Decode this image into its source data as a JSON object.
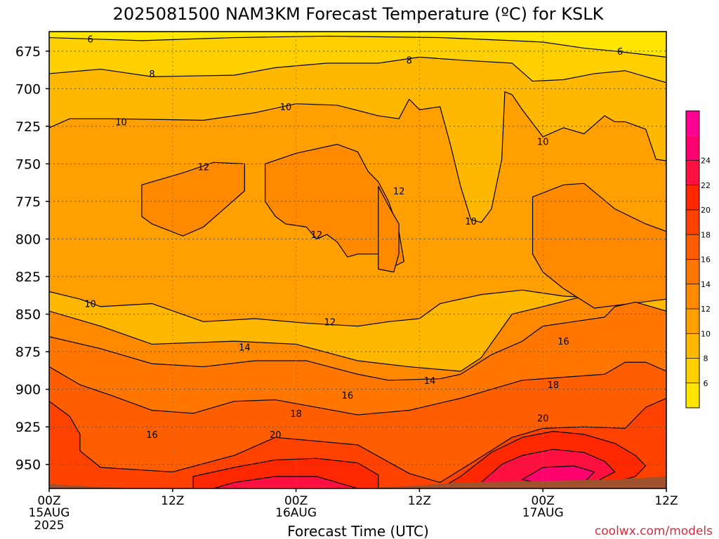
{
  "chart_data": {
    "type": "heatmap",
    "title": "2025081500 NAM3KM Forecast Temperature (ºC) for KSLK",
    "xlabel": "Forecast Time (UTC)",
    "ylabel": "",
    "x_unit": "forecast hour",
    "xlim": [
      0,
      60
    ],
    "ylim": [
      966,
      662
    ],
    "y_ticks": [
      675,
      700,
      725,
      750,
      775,
      800,
      825,
      850,
      875,
      900,
      925,
      950
    ],
    "x_ticks": [
      {
        "hour": 0,
        "label": "00Z",
        "date": "15AUG",
        "year": "2025"
      },
      {
        "hour": 12,
        "label": "12Z",
        "date": "",
        "year": ""
      },
      {
        "hour": 24,
        "label": "00Z",
        "date": "16AUG",
        "year": ""
      },
      {
        "hour": 36,
        "label": "12Z",
        "date": "",
        "year": ""
      },
      {
        "hour": 48,
        "label": "00Z",
        "date": "17AUG",
        "year": ""
      },
      {
        "hour": 60,
        "label": "12Z",
        "date": "",
        "year": ""
      }
    ],
    "grid": true,
    "colorbar": {
      "position": "right",
      "levels": [
        4,
        6,
        8,
        10,
        12,
        14,
        16,
        18,
        20,
        22,
        24,
        26
      ],
      "tick_labels": [
        "6",
        "8",
        "10",
        "12",
        "14",
        "16",
        "18",
        "20",
        "22",
        "24"
      ],
      "colors": [
        "#ffe600",
        "#ffd000",
        "#ffb800",
        "#ff9f00",
        "#ff8a00",
        "#ff7600",
        "#ff5e00",
        "#ff4200",
        "#ff2800",
        "#ff1040",
        "#ff006e",
        "#ff0090"
      ]
    },
    "bands": [
      {
        "level": 6,
        "color": "#ffd000",
        "boundary": [
          [
            0,
            666
          ],
          [
            9,
            668
          ],
          [
            18,
            666
          ],
          [
            27,
            665
          ],
          [
            38,
            666
          ],
          [
            45,
            668
          ],
          [
            48,
            669
          ],
          [
            52,
            673
          ],
          [
            55,
            675
          ],
          [
            60,
            679
          ]
        ]
      },
      {
        "level": 8,
        "color": "#ffb800",
        "boundary": [
          [
            0,
            690
          ],
          [
            5,
            687
          ],
          [
            10,
            692
          ],
          [
            18,
            691
          ],
          [
            22,
            686
          ],
          [
            27,
            683
          ],
          [
            32,
            683
          ],
          [
            36,
            679
          ],
          [
            40,
            681
          ],
          [
            45,
            683
          ],
          [
            47,
            695
          ],
          [
            50,
            694
          ],
          [
            53,
            690
          ],
          [
            56,
            688
          ],
          [
            60,
            696
          ]
        ]
      },
      {
        "level": 10,
        "color": "#ff9f00",
        "boundary": [
          [
            0,
            726
          ],
          [
            2,
            720
          ],
          [
            6,
            720
          ],
          [
            15,
            721
          ],
          [
            20,
            716
          ],
          [
            24,
            710
          ],
          [
            28,
            711
          ],
          [
            32,
            718
          ],
          [
            34,
            720
          ],
          [
            35,
            707
          ],
          [
            36,
            714
          ],
          [
            38,
            712
          ],
          [
            39,
            737
          ],
          [
            40,
            765
          ],
          [
            41,
            787
          ],
          [
            42,
            789
          ],
          [
            43,
            780
          ],
          [
            44,
            747
          ],
          [
            44.3,
            702
          ],
          [
            45,
            704
          ],
          [
            46,
            714
          ],
          [
            48,
            732
          ],
          [
            50,
            726
          ],
          [
            52,
            730
          ],
          [
            54,
            718
          ],
          [
            55,
            722
          ],
          [
            56,
            722
          ],
          [
            58,
            727
          ],
          [
            59,
            747
          ],
          [
            60,
            748
          ],
          [
            60,
            840
          ],
          [
            55,
            840
          ],
          [
            50,
            838
          ],
          [
            46,
            834
          ],
          [
            42,
            837
          ],
          [
            38,
            843
          ],
          [
            36,
            853
          ],
          [
            33,
            855
          ],
          [
            30,
            858
          ],
          [
            25,
            856
          ],
          [
            20,
            853
          ],
          [
            15,
            855
          ],
          [
            10,
            843
          ],
          [
            5,
            845
          ],
          [
            3,
            840
          ],
          [
            0,
            835
          ]
        ]
      },
      {
        "level": 12,
        "color": "#ff8a00",
        "boundary": [
          [
            0,
            848
          ],
          [
            5,
            858
          ],
          [
            10,
            870
          ],
          [
            18,
            868
          ],
          [
            24,
            870
          ],
          [
            30,
            881
          ],
          [
            35,
            885
          ],
          [
            40,
            888
          ],
          [
            42,
            879
          ],
          [
            45,
            850
          ],
          [
            48,
            845
          ],
          [
            52,
            838
          ],
          [
            53,
            846
          ],
          [
            55,
            844
          ],
          [
            57,
            845
          ],
          [
            58,
            847
          ],
          [
            60,
            848
          ],
          [
            60,
            966
          ],
          [
            0,
            966
          ]
        ]
      },
      {
        "level": 12,
        "color": "#ff8a00",
        "boundary": [
          [
            9,
            764
          ],
          [
            13,
            756
          ],
          [
            16,
            749
          ],
          [
            19,
            750
          ],
          [
            19,
            768
          ],
          [
            17,
            780
          ],
          [
            15,
            792
          ],
          [
            13,
            798
          ],
          [
            10,
            790
          ],
          [
            9,
            785
          ]
        ]
      },
      {
        "level": 12,
        "color": "#ff8a00",
        "boundary": [
          [
            21,
            750
          ],
          [
            24,
            743
          ],
          [
            28,
            737
          ],
          [
            30,
            742
          ],
          [
            31,
            755
          ],
          [
            32,
            762
          ],
          [
            33,
            775
          ],
          [
            34,
            795
          ],
          [
            34.5,
            815
          ],
          [
            33,
            820
          ],
          [
            32,
            810
          ],
          [
            30,
            810
          ],
          [
            29,
            812
          ],
          [
            28,
            802
          ],
          [
            27,
            797
          ],
          [
            26,
            800
          ],
          [
            25,
            792
          ],
          [
            23,
            790
          ],
          [
            22,
            785
          ],
          [
            21,
            775
          ]
        ]
      },
      {
        "level": 12,
        "color": "#ff8a00",
        "boundary": [
          [
            32,
            765
          ],
          [
            33,
            778
          ],
          [
            34,
            790
          ],
          [
            34,
            810
          ],
          [
            33.5,
            822
          ],
          [
            32,
            820
          ]
        ]
      },
      {
        "level": 12,
        "color": "#ff8a00",
        "boundary": [
          [
            47,
            772
          ],
          [
            50,
            764
          ],
          [
            52,
            763
          ],
          [
            55,
            780
          ],
          [
            58,
            790
          ],
          [
            60,
            795
          ],
          [
            60,
            840
          ],
          [
            53,
            846
          ],
          [
            50,
            833
          ],
          [
            48,
            822
          ],
          [
            47,
            810
          ]
        ]
      },
      {
        "level": 14,
        "color": "#ff7600",
        "boundary": [
          [
            0,
            865
          ],
          [
            5,
            873
          ],
          [
            10,
            883
          ],
          [
            15,
            885
          ],
          [
            20,
            881
          ],
          [
            25,
            881
          ],
          [
            30,
            890
          ],
          [
            33,
            894
          ],
          [
            38,
            893
          ],
          [
            40,
            890
          ],
          [
            43,
            877
          ],
          [
            46,
            868
          ],
          [
            48,
            858
          ],
          [
            51,
            855
          ],
          [
            54,
            852
          ],
          [
            55,
            845
          ],
          [
            57,
            842
          ],
          [
            60,
            848
          ],
          [
            60,
            966
          ],
          [
            0,
            966
          ]
        ]
      },
      {
        "level": 16,
        "color": "#ff5e00",
        "boundary": [
          [
            0,
            885
          ],
          [
            3,
            897
          ],
          [
            6,
            904
          ],
          [
            10,
            914
          ],
          [
            14,
            916
          ],
          [
            18,
            908
          ],
          [
            22,
            907
          ],
          [
            30,
            917
          ],
          [
            35,
            914
          ],
          [
            40,
            906
          ],
          [
            42,
            902
          ],
          [
            46,
            894
          ],
          [
            50,
            892
          ],
          [
            54,
            890
          ],
          [
            56,
            882
          ],
          [
            58,
            882
          ],
          [
            60,
            888
          ],
          [
            60,
            966
          ],
          [
            0,
            966
          ]
        ]
      },
      {
        "level": 18,
        "color": "#ff4200",
        "boundary": [
          [
            0,
            908
          ],
          [
            2,
            918
          ],
          [
            3,
            930
          ],
          [
            3,
            941
          ],
          [
            5,
            952
          ],
          [
            12,
            955
          ],
          [
            18,
            944
          ],
          [
            22,
            932
          ],
          [
            30,
            937
          ],
          [
            35,
            956
          ],
          [
            38,
            962
          ],
          [
            42,
            945
          ],
          [
            45,
            932
          ],
          [
            48,
            926
          ],
          [
            52,
            925
          ],
          [
            56,
            926
          ],
          [
            58,
            912
          ],
          [
            60,
            906
          ],
          [
            60,
            966
          ],
          [
            0,
            966
          ]
        ]
      },
      {
        "level": 20,
        "color": "#ff2800",
        "boundary": [
          [
            14,
            958
          ],
          [
            18,
            952
          ],
          [
            22,
            947
          ],
          [
            26,
            946
          ],
          [
            30,
            949
          ],
          [
            32,
            957
          ],
          [
            32,
            966
          ],
          [
            14,
            966
          ]
        ]
      },
      {
        "level": 20,
        "color": "#ff2800",
        "boundary": [
          [
            38,
            966
          ],
          [
            40,
            958
          ],
          [
            43,
            942
          ],
          [
            46,
            932
          ],
          [
            49,
            928
          ],
          [
            52,
            930
          ],
          [
            55,
            936
          ],
          [
            57,
            944
          ],
          [
            58,
            951
          ],
          [
            57,
            958
          ],
          [
            55,
            962
          ],
          [
            52,
            966
          ]
        ]
      },
      {
        "level": 22,
        "color": "#ff1040",
        "boundary": [
          [
            16,
            966
          ],
          [
            18,
            962
          ],
          [
            22,
            958
          ],
          [
            26,
            958
          ],
          [
            28,
            962
          ],
          [
            30,
            966
          ]
        ]
      },
      {
        "level": 22,
        "color": "#ff1040",
        "boundary": [
          [
            42,
            962
          ],
          [
            44,
            950
          ],
          [
            46,
            944
          ],
          [
            49,
            940
          ],
          [
            52,
            942
          ],
          [
            54,
            948
          ],
          [
            55,
            955
          ],
          [
            53,
            962
          ],
          [
            50,
            966
          ],
          [
            44,
            966
          ]
        ]
      },
      {
        "level": 24,
        "color": "#ff006e",
        "boundary": [
          [
            46,
            960
          ],
          [
            48,
            952
          ],
          [
            51,
            951
          ],
          [
            53,
            955
          ],
          [
            52,
            962
          ],
          [
            48,
            963
          ]
        ]
      }
    ],
    "contour_labels": [
      {
        "x": 4,
        "y": 667,
        "text": "6"
      },
      {
        "x": 55.5,
        "y": 675,
        "text": "6"
      },
      {
        "x": 10,
        "y": 690,
        "text": "8"
      },
      {
        "x": 35,
        "y": 681,
        "text": "8"
      },
      {
        "x": 7,
        "y": 722,
        "text": "10"
      },
      {
        "x": 23,
        "y": 712,
        "text": "10"
      },
      {
        "x": 41,
        "y": 788,
        "text": "10"
      },
      {
        "x": 48,
        "y": 735,
        "text": "10"
      },
      {
        "x": 4,
        "y": 843,
        "text": "10"
      },
      {
        "x": 15,
        "y": 752,
        "text": "12"
      },
      {
        "x": 26,
        "y": 797,
        "text": "12"
      },
      {
        "x": 34,
        "y": 768,
        "text": "12"
      },
      {
        "x": 27.3,
        "y": 855,
        "text": "12"
      },
      {
        "x": 19,
        "y": 872,
        "text": "14"
      },
      {
        "x": 37,
        "y": 894,
        "text": "14"
      },
      {
        "x": 29,
        "y": 904,
        "text": "16"
      },
      {
        "x": 50,
        "y": 868,
        "text": "16"
      },
      {
        "x": 10,
        "y": 930,
        "text": "16"
      },
      {
        "x": 24,
        "y": 916,
        "text": "18"
      },
      {
        "x": 49,
        "y": 897,
        "text": "18"
      },
      {
        "x": 22,
        "y": 930,
        "text": "20"
      },
      {
        "x": 48,
        "y": 919,
        "text": "20"
      }
    ],
    "terrain_color": "#a0522d",
    "terrain_top": [
      [
        0,
        963
      ],
      [
        5,
        965
      ],
      [
        10,
        966
      ],
      [
        20,
        966
      ],
      [
        30,
        966
      ],
      [
        36,
        964
      ],
      [
        40,
        962
      ],
      [
        48,
        961
      ],
      [
        55,
        960
      ],
      [
        60,
        958
      ]
    ]
  },
  "watermark": "coolwx.com/models"
}
